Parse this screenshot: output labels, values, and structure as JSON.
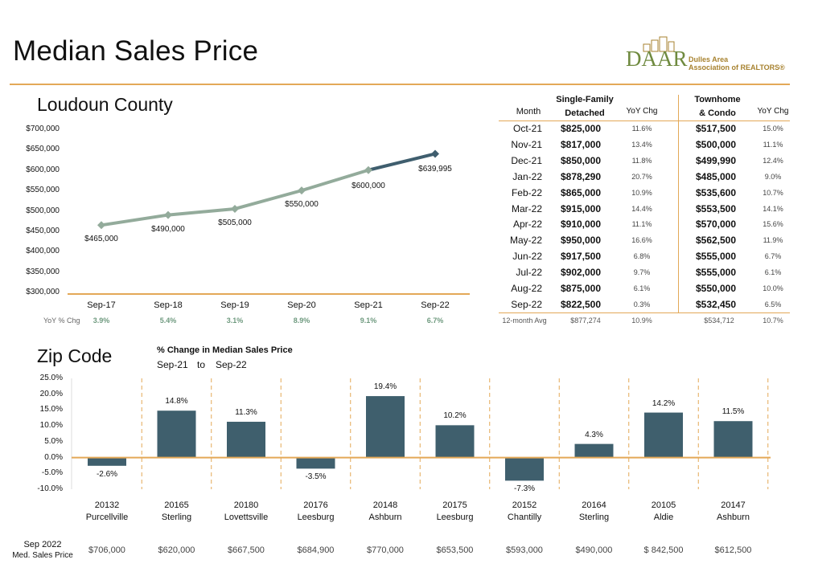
{
  "title": "Median Sales Price",
  "logo": {
    "letters": "DAAR",
    "line1": "Dulles Area",
    "line2": "Association of REALTORS®"
  },
  "colors": {
    "accent": "#e3a857",
    "line_light": "#93ab9b",
    "line_dark": "#3f5e6e",
    "bar": "#3f5f6d",
    "yoy_green": "#6f9a7f"
  },
  "chart_data": [
    {
      "type": "line",
      "title": "Loudoun County",
      "categories": [
        "Sep-17",
        "Sep-18",
        "Sep-19",
        "Sep-20",
        "Sep-21",
        "Sep-22"
      ],
      "values": [
        465000,
        490000,
        505000,
        550000,
        600000,
        639995
      ],
      "value_labels": [
        "$465,000",
        "$490,000",
        "$505,000",
        "$550,000",
        "$600,000",
        "$639,995"
      ],
      "ylim": [
        300000,
        700000
      ],
      "yticks": [
        "$700,000",
        "$650,000",
        "$600,000",
        "$550,000",
        "$500,000",
        "$450,000",
        "$400,000",
        "$350,000",
        "$300,000"
      ],
      "yoy_label": "YoY % Chg",
      "yoy": [
        "3.9%",
        "5.4%",
        "3.1%",
        "8.9%",
        "9.1%",
        "6.7%"
      ]
    },
    {
      "type": "bar",
      "title": "Zip Code",
      "subtitle": "% Change in Median Sales Price",
      "period_from": "Sep-21",
      "period_to_word": "to",
      "period_to": "Sep-22",
      "categories": [
        "20132",
        "20165",
        "20180",
        "20176",
        "20148",
        "20175",
        "20152",
        "20164",
        "20105",
        "20147"
      ],
      "cities": [
        "Purcellville",
        "Sterling",
        "Lovettsville",
        "Leesburg",
        "Ashburn",
        "Leesburg",
        "Chantilly",
        "Sterling",
        "Aldie",
        "Ashburn"
      ],
      "values": [
        -2.6,
        14.8,
        11.3,
        -3.5,
        19.4,
        10.2,
        -7.3,
        4.3,
        14.2,
        11.5
      ],
      "value_labels": [
        "-2.6%",
        "14.8%",
        "11.3%",
        "-3.5%",
        "19.4%",
        "10.2%",
        "-7.3%",
        "4.3%",
        "14.2%",
        "11.5%"
      ],
      "ylim": [
        -10,
        25
      ],
      "yticks": [
        "25.0%",
        "20.0%",
        "15.0%",
        "10.0%",
        "5.0%",
        "0.0%",
        "-5.0%",
        "-10.0%"
      ],
      "price_label_line1": "Sep 2022",
      "price_label_line2": "Med. Sales Price",
      "prices": [
        "$706,000",
        "$620,000",
        "$667,500",
        "$684,900",
        "$770,000",
        "$653,500",
        "$593,000",
        "$490,000",
        "$ 842,500",
        "$612,500"
      ]
    },
    {
      "type": "table",
      "headers": {
        "month": "Month",
        "sf_line1": "Single-Family",
        "sf_line2": "Detached",
        "yoy": "YoY Chg",
        "th_line1": "Townhome",
        "th_line2": "& Condo"
      },
      "rows": [
        {
          "month": "Oct-21",
          "sf": "$825,000",
          "sf_yoy": "11.6%",
          "th": "$517,500",
          "th_yoy": "15.0%"
        },
        {
          "month": "Nov-21",
          "sf": "$817,000",
          "sf_yoy": "13.4%",
          "th": "$500,000",
          "th_yoy": "11.1%"
        },
        {
          "month": "Dec-21",
          "sf": "$850,000",
          "sf_yoy": "11.8%",
          "th": "$499,990",
          "th_yoy": "12.4%"
        },
        {
          "month": "Jan-22",
          "sf": "$878,290",
          "sf_yoy": "20.7%",
          "th": "$485,000",
          "th_yoy": "9.0%"
        },
        {
          "month": "Feb-22",
          "sf": "$865,000",
          "sf_yoy": "10.9%",
          "th": "$535,600",
          "th_yoy": "10.7%"
        },
        {
          "month": "Mar-22",
          "sf": "$915,000",
          "sf_yoy": "14.4%",
          "th": "$553,500",
          "th_yoy": "14.1%"
        },
        {
          "month": "Apr-22",
          "sf": "$910,000",
          "sf_yoy": "11.1%",
          "th": "$570,000",
          "th_yoy": "15.6%"
        },
        {
          "month": "May-22",
          "sf": "$950,000",
          "sf_yoy": "16.6%",
          "th": "$562,500",
          "th_yoy": "11.9%"
        },
        {
          "month": "Jun-22",
          "sf": "$917,500",
          "sf_yoy": "6.8%",
          "th": "$555,000",
          "th_yoy": "6.7%"
        },
        {
          "month": "Jul-22",
          "sf": "$902,000",
          "sf_yoy": "9.7%",
          "th": "$555,000",
          "th_yoy": "6.1%"
        },
        {
          "month": "Aug-22",
          "sf": "$875,000",
          "sf_yoy": "6.1%",
          "th": "$550,000",
          "th_yoy": "10.0%"
        },
        {
          "month": "Sep-22",
          "sf": "$822,500",
          "sf_yoy": "0.3%",
          "th": "$532,450",
          "th_yoy": "6.5%"
        }
      ],
      "avg": {
        "label": "12-month Avg",
        "sf": "$877,274",
        "sf_yoy": "10.9%",
        "th": "$534,712",
        "th_yoy": "10.7%"
      }
    }
  ]
}
